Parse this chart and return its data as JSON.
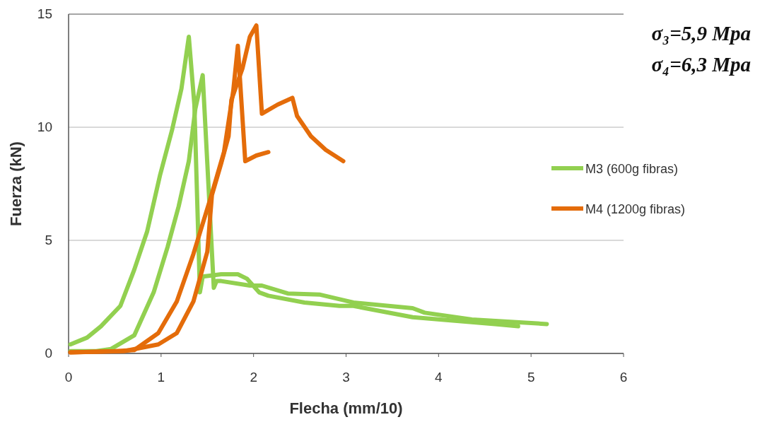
{
  "chart_data": {
    "type": "line",
    "xlabel": "Flecha (mm/10)",
    "ylabel": "Fuerza (kN)",
    "xlim": [
      0,
      6
    ],
    "ylim": [
      0,
      15
    ],
    "xticks": [
      0,
      1,
      2,
      3,
      4,
      5,
      6
    ],
    "yticks": [
      0,
      5,
      10,
      15
    ],
    "grid": "y",
    "legend": "right",
    "marker": "none",
    "line_style": "solid",
    "annotations": [
      "σ₃=5,9 Mpa",
      "σ₄=6,3 Mpa"
    ],
    "series": [
      {
        "name": "M3 (600g fibras)",
        "color": "#92d050",
        "x": [
          0.02,
          0.2,
          0.35,
          0.56,
          0.71,
          0.85,
          0.99,
          1.12,
          1.22,
          1.3,
          1.36,
          1.42,
          1.45,
          1.65,
          1.83,
          1.93,
          2.06,
          2.16,
          2.55,
          2.93,
          3.08,
          3.72,
          4.61,
          4.86
        ],
        "values": [
          0.4,
          0.7,
          1.2,
          2.1,
          3.7,
          5.4,
          7.9,
          9.9,
          11.7,
          14.0,
          11.0,
          2.7,
          3.4,
          3.5,
          3.5,
          3.3,
          2.7,
          2.55,
          2.25,
          2.1,
          2.1,
          1.6,
          1.3,
          1.2
        ]
      },
      {
        "color": "#92d050",
        "x": [
          0.02,
          0.3,
          0.46,
          0.71,
          0.92,
          1.07,
          1.19,
          1.3,
          1.37,
          1.45,
          1.5,
          1.57,
          1.6,
          1.65,
          1.96,
          2.09,
          2.37,
          2.72,
          2.98,
          3.08,
          3.72,
          3.85,
          4.36,
          5.17
        ],
        "values": [
          0.1,
          0.1,
          0.2,
          0.8,
          2.7,
          4.7,
          6.5,
          8.5,
          10.8,
          12.3,
          8.4,
          2.9,
          3.2,
          3.2,
          3.0,
          3.0,
          2.65,
          2.6,
          2.35,
          2.25,
          2.0,
          1.8,
          1.5,
          1.3
        ]
      },
      {
        "name": "M4 (1200g fibras)",
        "color": "#e46c0a",
        "x": [
          0.02,
          0.5,
          0.71,
          0.97,
          1.17,
          1.35,
          1.53,
          1.68,
          1.78,
          1.83,
          1.91,
          2.03,
          2.16
        ],
        "values": [
          0.05,
          0.1,
          0.15,
          0.9,
          2.3,
          4.4,
          6.8,
          8.9,
          11.6,
          13.6,
          8.5,
          8.75,
          8.9
        ]
      },
      {
        "color": "#e46c0a",
        "x": [
          0.02,
          0.6,
          0.97,
          1.17,
          1.35,
          1.5,
          1.55,
          1.65,
          1.73,
          1.76,
          1.88,
          1.96,
          2.03,
          2.09,
          2.26,
          2.42,
          2.47,
          2.62,
          2.78,
          2.97
        ],
        "values": [
          0.05,
          0.1,
          0.4,
          0.9,
          2.3,
          4.5,
          7.0,
          8.4,
          9.6,
          11.2,
          12.6,
          14.0,
          14.5,
          10.6,
          11.0,
          11.3,
          10.5,
          9.6,
          9.0,
          8.5
        ]
      }
    ]
  }
}
